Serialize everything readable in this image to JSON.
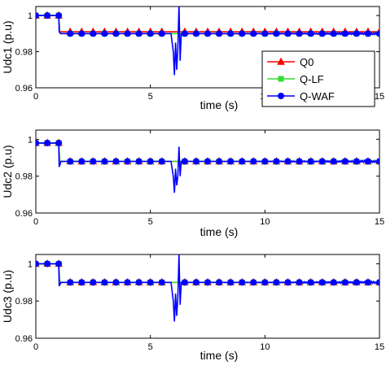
{
  "chart_data": [
    {
      "type": "line",
      "title": "",
      "xlabel": "time (s)",
      "ylabel": "Udc1 (p.u)",
      "xlim": [
        0,
        15
      ],
      "ylim": [
        0.96,
        1.005
      ],
      "xticks": [
        "0",
        "5",
        "10",
        "15"
      ],
      "yticks": [
        "0.96",
        "0.98",
        "1"
      ],
      "legend": {
        "placement": "right-middle",
        "entries": [
          "Q0",
          "Q-LF",
          "Q-WAF"
        ]
      },
      "series": [
        {
          "name": "Q0",
          "color": "#ff0000",
          "marker": "triangle",
          "x": [
            0,
            1,
            1.05,
            15
          ],
          "y": [
            1.0,
            1.0,
            0.991,
            0.991
          ]
        },
        {
          "name": "Q-LF",
          "color": "#33dd33",
          "marker": "square",
          "x": [
            0,
            1,
            1.05,
            15
          ],
          "y": [
            1.0,
            1.0,
            0.99,
            0.99
          ]
        },
        {
          "name": "Q-WAF",
          "color": "#0000ff",
          "marker": "circle",
          "x": [
            0,
            1,
            1.02,
            1.1,
            5.9,
            6.0,
            6.05,
            6.1,
            6.15,
            6.2,
            6.25,
            6.3,
            6.35,
            6.4,
            6.5,
            15
          ],
          "y": [
            1.0,
            1.0,
            0.991,
            0.99,
            0.99,
            0.98,
            0.967,
            0.985,
            0.97,
            0.982,
            1.006,
            0.975,
            0.99,
            0.99,
            0.99,
            0.99
          ]
        }
      ]
    },
    {
      "type": "line",
      "title": "",
      "xlabel": "time (s)",
      "ylabel": "Udc2 (p.u)",
      "xlim": [
        0,
        15
      ],
      "ylim": [
        0.96,
        1.005
      ],
      "xticks": [
        "0",
        "5",
        "10",
        "15"
      ],
      "yticks": [
        "0.96",
        "0.98",
        "1"
      ],
      "series": [
        {
          "name": "Q0",
          "color": "#ff0000",
          "marker": "triangle",
          "x": [
            0,
            1,
            1.05,
            15
          ],
          "y": [
            0.998,
            0.998,
            0.988,
            0.988
          ]
        },
        {
          "name": "Q-LF",
          "color": "#33dd33",
          "marker": "square",
          "x": [
            0,
            1,
            1.05,
            15
          ],
          "y": [
            0.998,
            0.998,
            0.988,
            0.988
          ]
        },
        {
          "name": "Q-WAF",
          "color": "#0000ff",
          "marker": "circle",
          "x": [
            0,
            1,
            1.02,
            1.1,
            5.9,
            6.0,
            6.05,
            6.1,
            6.15,
            6.2,
            6.25,
            6.3,
            6.35,
            6.4,
            6.5,
            15
          ],
          "y": [
            0.998,
            0.998,
            0.985,
            0.988,
            0.988,
            0.98,
            0.971,
            0.984,
            0.975,
            0.98,
            0.996,
            0.98,
            0.988,
            0.988,
            0.988,
            0.988
          ]
        }
      ]
    },
    {
      "type": "line",
      "title": "",
      "xlabel": "time (s)",
      "ylabel": "Udc3 (p.u)",
      "xlim": [
        0,
        15
      ],
      "ylim": [
        0.96,
        1.005
      ],
      "xticks": [
        "0",
        "5",
        "10",
        "15"
      ],
      "yticks": [
        "0.96",
        "0.98",
        "1"
      ],
      "series": [
        {
          "name": "Q0",
          "color": "#ff0000",
          "marker": "triangle",
          "x": [
            0,
            1,
            1.05,
            15
          ],
          "y": [
            1.0,
            1.0,
            0.99,
            0.99
          ]
        },
        {
          "name": "Q-LF",
          "color": "#33dd33",
          "marker": "square",
          "x": [
            0,
            1,
            1.05,
            15
          ],
          "y": [
            1.0,
            1.0,
            0.99,
            0.99
          ]
        },
        {
          "name": "Q-WAF",
          "color": "#0000ff",
          "marker": "circle",
          "x": [
            0,
            1,
            1.02,
            1.1,
            5.9,
            6.0,
            6.05,
            6.1,
            6.15,
            6.2,
            6.25,
            6.3,
            6.35,
            6.4,
            6.5,
            15
          ],
          "y": [
            1.0,
            1.0,
            0.988,
            0.99,
            0.99,
            0.98,
            0.969,
            0.984,
            0.972,
            0.982,
            1.005,
            0.978,
            0.99,
            0.99,
            0.99,
            0.99
          ]
        }
      ]
    }
  ]
}
